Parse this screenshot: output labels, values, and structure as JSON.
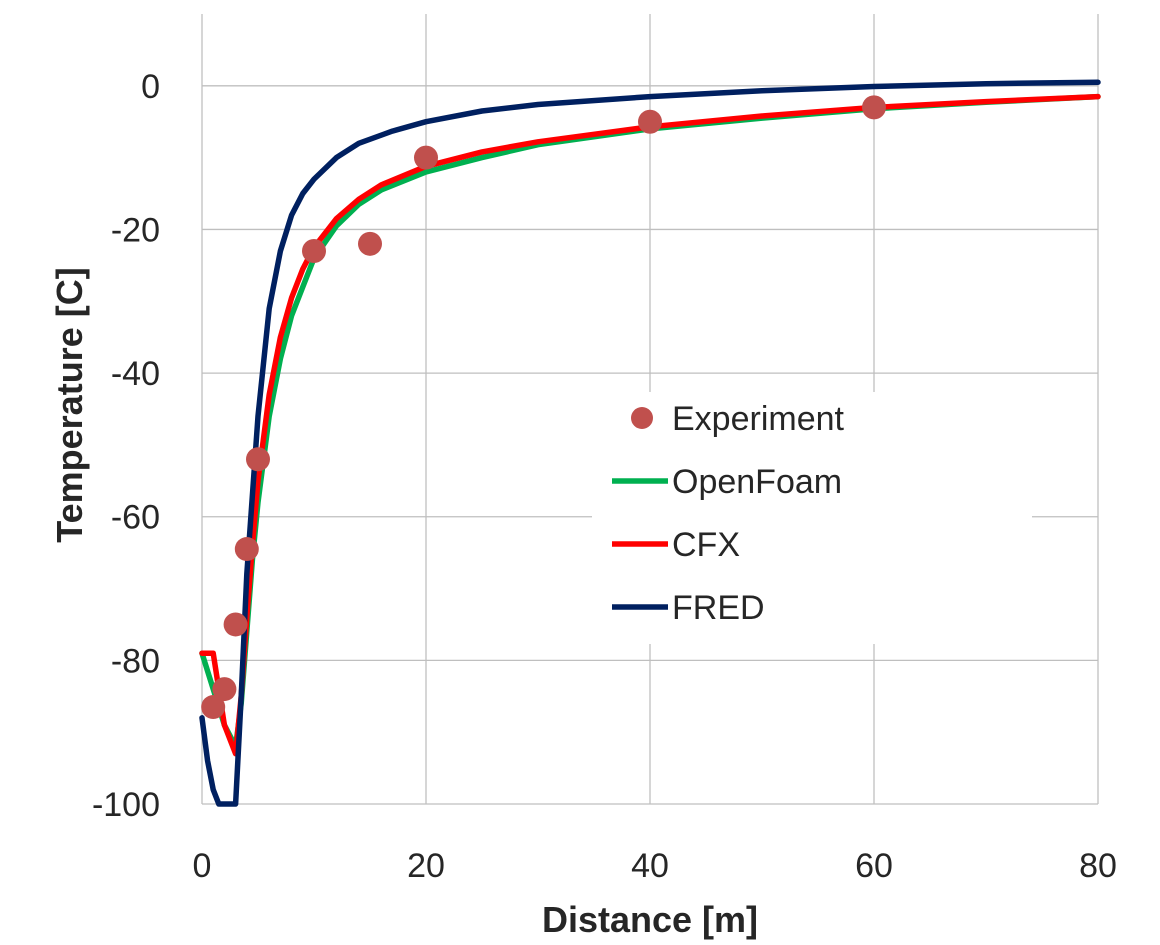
{
  "chart_data": {
    "type": "line",
    "title": "",
    "xlabel": "Distance [m]",
    "ylabel": "Temperature [C]",
    "xlim": [
      0,
      80
    ],
    "ylim": [
      -100,
      10
    ],
    "xticks": [
      0,
      20,
      40,
      60,
      80
    ],
    "yticks": [
      0,
      -20,
      -40,
      -60,
      -80,
      -100
    ],
    "grid": true,
    "legend_position": "center-right",
    "series": [
      {
        "name": "Experiment",
        "kind": "scatter",
        "color": "#c0504d",
        "x": [
          1,
          2,
          3,
          4,
          5,
          10,
          15,
          20,
          40,
          60
        ],
        "y": [
          -86.5,
          -84,
          -75,
          -64.5,
          -52,
          -23,
          -22,
          -10,
          -5,
          -3
        ]
      },
      {
        "name": "OpenFoam",
        "kind": "line",
        "color": "#00b050",
        "x": [
          0,
          1,
          2,
          3,
          3.5,
          4,
          4.5,
          5,
          6,
          7,
          8,
          9,
          10,
          12,
          14,
          16,
          20,
          25,
          30,
          40,
          50,
          60,
          70,
          80
        ],
        "y": [
          -79,
          -84,
          -89,
          -92,
          -86,
          -76,
          -66,
          -58,
          -46,
          -38,
          -32,
          -28,
          -24,
          -19.5,
          -16.5,
          -14.5,
          -12,
          -10,
          -8.2,
          -6,
          -4.5,
          -3.2,
          -2.3,
          -1.5
        ]
      },
      {
        "name": "CFX",
        "kind": "line",
        "color": "#ff0000",
        "x": [
          0,
          1,
          2,
          3,
          3.5,
          4,
          4.5,
          5,
          6,
          7,
          8,
          9,
          10,
          12,
          14,
          16,
          20,
          25,
          30,
          40,
          50,
          60,
          70,
          80
        ],
        "y": [
          -79,
          -79,
          -89,
          -93,
          -85,
          -74,
          -64,
          -55,
          -43,
          -35,
          -29.5,
          -25.5,
          -22.5,
          -18.5,
          -15.8,
          -13.8,
          -11.2,
          -9.2,
          -7.8,
          -5.7,
          -4.2,
          -3.0,
          -2.2,
          -1.5
        ]
      },
      {
        "name": "FRED",
        "kind": "line",
        "color": "#002060",
        "x": [
          0,
          0.5,
          1,
          1.5,
          2,
          2.5,
          3,
          3.5,
          4,
          5,
          6,
          7,
          8,
          9,
          10,
          12,
          14,
          17,
          20,
          25,
          30,
          40,
          50,
          60,
          70,
          80
        ],
        "y": [
          -88,
          -94,
          -98,
          -101,
          -102,
          -102,
          -100,
          -85,
          -68,
          -46,
          -31,
          -23,
          -18,
          -15,
          -13,
          -10,
          -8,
          -6.3,
          -5,
          -3.5,
          -2.6,
          -1.5,
          -0.7,
          -0.1,
          0.3,
          0.5
        ]
      }
    ]
  }
}
